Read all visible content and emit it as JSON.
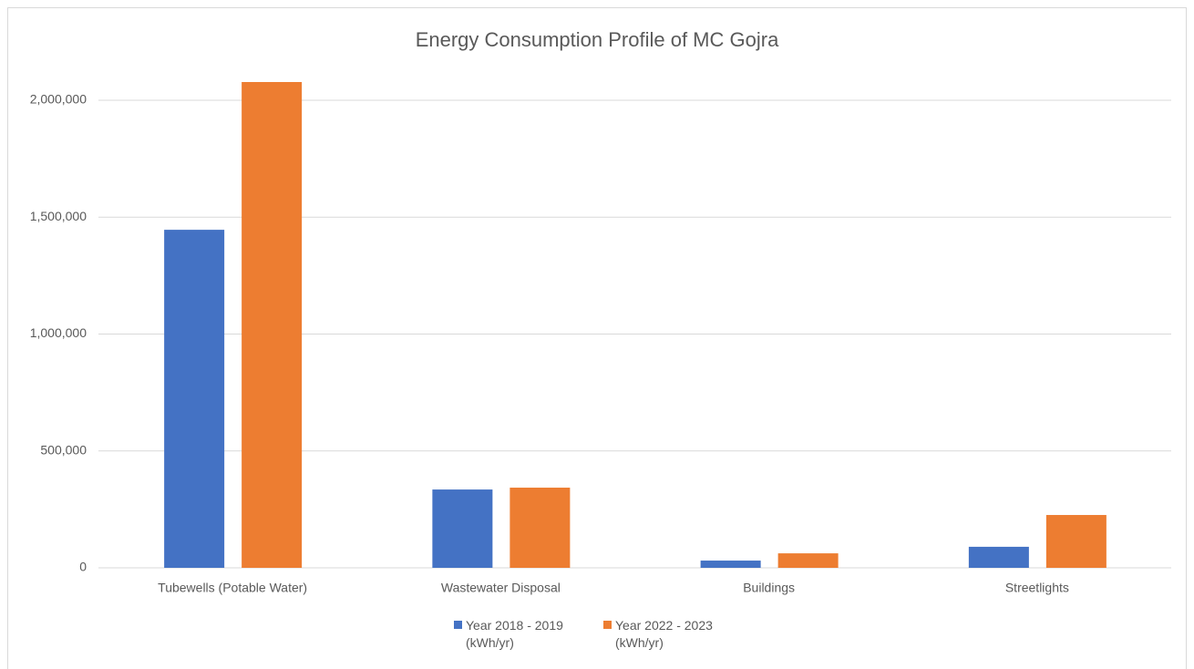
{
  "chart_data": {
    "type": "bar",
    "title": "Energy Consumption Profile of MC Gojra",
    "categories": [
      "Tubewells (Potable Water)",
      "Wastewater Disposal",
      "Buildings",
      "Streetlights"
    ],
    "series": [
      {
        "name": "Year 2018 - 2019 (kWh/yr)",
        "color": "#4472c4",
        "values": [
          1446000,
          335000,
          31000,
          90000
        ]
      },
      {
        "name": "Year 2022 - 2023 (kWh/yr)",
        "color": "#ed7d31",
        "values": [
          2078000,
          343000,
          62000,
          226000
        ]
      }
    ],
    "ylim": [
      0,
      2100000
    ],
    "yticks": [
      0,
      {
        "value": 500000,
        "label": "500,000"
      },
      {
        "value": 1000000,
        "label": "1,000,000"
      },
      {
        "value": 1500000,
        "label": "1,500,000"
      },
      {
        "value": 2000000,
        "label": "2,000,000"
      }
    ],
    "grid": true,
    "legend": "bottom"
  }
}
